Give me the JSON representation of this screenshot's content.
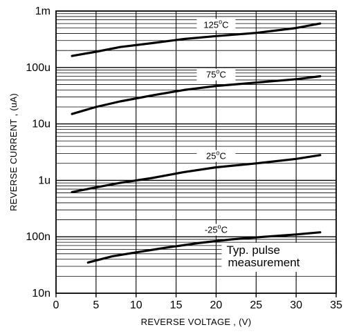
{
  "chart_data": {
    "type": "line",
    "title": "",
    "xlabel": "REVERSE VOLTAGE , (V)",
    "ylabel": "REVERSE CURRENT , (uA)",
    "xlim": [
      0,
      35
    ],
    "ylim": [
      0.01,
      1000
    ],
    "y_scale": "log",
    "grid": true,
    "x_ticks": [
      0,
      5,
      10,
      15,
      20,
      25,
      30,
      35
    ],
    "x_tick_labels": [
      "0",
      "5",
      "10",
      "15",
      "20",
      "25",
      "30",
      "35"
    ],
    "y_ticks": [
      0.01,
      0.1,
      1,
      10,
      100,
      1000
    ],
    "y_tick_labels": [
      "10n",
      "100n",
      "1u",
      "10u",
      "100u",
      "1m"
    ],
    "annotation": [
      "Typ. pulse",
      "measurement"
    ],
    "series": [
      {
        "name": "125°C",
        "label_parts": [
          "125",
          "o",
          "C"
        ],
        "label_x": 20,
        "x": [
          2,
          5,
          8,
          12,
          16,
          20,
          25,
          30,
          33
        ],
        "y": [
          160,
          190,
          230,
          270,
          320,
          360,
          410,
          500,
          600
        ]
      },
      {
        "name": "75°C",
        "label_parts": [
          "75",
          "o",
          "C"
        ],
        "label_x": 20,
        "x": [
          2,
          5,
          8,
          12,
          16,
          20,
          25,
          30,
          33
        ],
        "y": [
          15,
          20,
          25,
          32,
          40,
          47,
          54,
          62,
          70
        ]
      },
      {
        "name": "25°C",
        "label_parts": [
          "25",
          "o",
          "C"
        ],
        "label_x": 20,
        "x": [
          2,
          5,
          8,
          12,
          16,
          20,
          25,
          30,
          33
        ],
        "y": [
          0.62,
          0.75,
          0.9,
          1.1,
          1.4,
          1.7,
          2.0,
          2.4,
          2.8
        ]
      },
      {
        "name": "-25°C",
        "label_parts": [
          "-25",
          "o",
          "C"
        ],
        "label_x": 20,
        "x": [
          4,
          7,
          10,
          14,
          18,
          22,
          26,
          30,
          33
        ],
        "y": [
          0.035,
          0.045,
          0.053,
          0.065,
          0.078,
          0.09,
          0.1,
          0.11,
          0.12
        ]
      }
    ]
  }
}
